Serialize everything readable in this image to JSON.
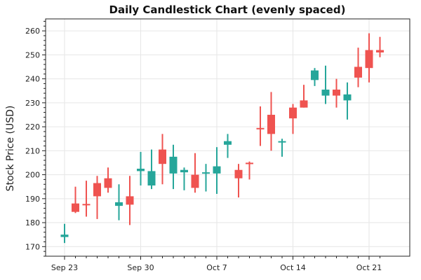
{
  "chart_data": {
    "type": "candlestick",
    "title": "Daily Candlestick Chart (evenly spaced)",
    "xlabel": "",
    "ylabel": "Stock Price (USD)",
    "ylim": [
      166,
      265
    ],
    "y_ticks": [
      170,
      180,
      190,
      200,
      210,
      220,
      230,
      240,
      250,
      260
    ],
    "x_ticks": [
      {
        "label": "Sep 23",
        "index": 0
      },
      {
        "label": "Sep 30",
        "index": 7
      },
      {
        "label": "Oct 7",
        "index": 14
      },
      {
        "label": "Oct 14",
        "index": 21
      },
      {
        "label": "Oct 21",
        "index": 28
      }
    ],
    "grid": true,
    "colors": {
      "up": "#26a69a",
      "down": "#ef5350"
    },
    "candles": [
      {
        "date": "2024-09-23",
        "open": 174.0,
        "high": 179.5,
        "low": 171.5,
        "close": 175.0
      },
      {
        "date": "2024-09-24",
        "open": 188.0,
        "high": 195.0,
        "low": 184.0,
        "close": 184.5
      },
      {
        "date": "2024-09-25",
        "open": 187.8,
        "high": 197.5,
        "low": 182.5,
        "close": 187.5
      },
      {
        "date": "2024-09-26",
        "open": 196.5,
        "high": 199.5,
        "low": 181.5,
        "close": 191.0
      },
      {
        "date": "2024-09-27",
        "open": 198.5,
        "high": 203.0,
        "low": 192.5,
        "close": 194.5
      },
      {
        "date": "2024-09-28",
        "open": 187.0,
        "high": 196.0,
        "low": 181.0,
        "close": 188.5
      },
      {
        "date": "2024-09-29",
        "open": 191.0,
        "high": 199.5,
        "low": 179.0,
        "close": 187.5
      },
      {
        "date": "2024-09-30",
        "open": 201.5,
        "high": 209.5,
        "low": 195.5,
        "close": 202.5
      },
      {
        "date": "2024-10-01",
        "open": 195.5,
        "high": 210.5,
        "low": 194.0,
        "close": 201.5
      },
      {
        "date": "2024-10-02",
        "open": 210.5,
        "high": 217.0,
        "low": 196.0,
        "close": 204.5
      },
      {
        "date": "2024-10-03",
        "open": 200.5,
        "high": 212.5,
        "low": 194.0,
        "close": 207.5
      },
      {
        "date": "2024-10-04",
        "open": 201.0,
        "high": 203.0,
        "low": 193.5,
        "close": 202.0
      },
      {
        "date": "2024-10-05",
        "open": 200.0,
        "high": 209.0,
        "low": 192.5,
        "close": 194.5
      },
      {
        "date": "2024-10-06",
        "open": 200.5,
        "high": 204.5,
        "low": 193.0,
        "close": 201.0
      },
      {
        "date": "2024-10-07",
        "open": 200.5,
        "high": 211.5,
        "low": 192.0,
        "close": 203.5
      },
      {
        "date": "2024-10-08",
        "open": 212.5,
        "high": 217.0,
        "low": 207.0,
        "close": 214.0
      },
      {
        "date": "2024-10-09",
        "open": 202.0,
        "high": 204.5,
        "low": 190.5,
        "close": 198.5
      },
      {
        "date": "2024-10-10",
        "open": 205.0,
        "high": 205.5,
        "low": 198.0,
        "close": 204.5
      },
      {
        "date": "2024-10-11",
        "open": 219.5,
        "high": 228.5,
        "low": 212.0,
        "close": 219.0
      },
      {
        "date": "2024-10-12",
        "open": 225.0,
        "high": 234.5,
        "low": 210.0,
        "close": 217.0
      },
      {
        "date": "2024-10-13",
        "open": 213.5,
        "high": 215.0,
        "low": 207.5,
        "close": 214.0
      },
      {
        "date": "2024-10-14",
        "open": 228.0,
        "high": 229.5,
        "low": 217.0,
        "close": 223.5
      },
      {
        "date": "2024-10-15",
        "open": 231.0,
        "high": 237.5,
        "low": 228.0,
        "close": 228.0
      },
      {
        "date": "2024-10-16",
        "open": 239.5,
        "high": 244.5,
        "low": 237.0,
        "close": 243.5
      },
      {
        "date": "2024-10-17",
        "open": 233.0,
        "high": 245.5,
        "low": 229.5,
        "close": 235.5
      },
      {
        "date": "2024-10-18",
        "open": 235.5,
        "high": 240.0,
        "low": 228.0,
        "close": 233.0
      },
      {
        "date": "2024-10-19",
        "open": 231.0,
        "high": 238.5,
        "low": 223.0,
        "close": 233.5
      },
      {
        "date": "2024-10-20",
        "open": 245.0,
        "high": 253.0,
        "low": 236.5,
        "close": 240.5
      },
      {
        "date": "2024-10-21",
        "open": 252.0,
        "high": 259.0,
        "low": 238.5,
        "close": 244.5
      },
      {
        "date": "2024-10-22",
        "open": 252.0,
        "high": 257.5,
        "low": 249.0,
        "close": 251.0
      }
    ]
  }
}
